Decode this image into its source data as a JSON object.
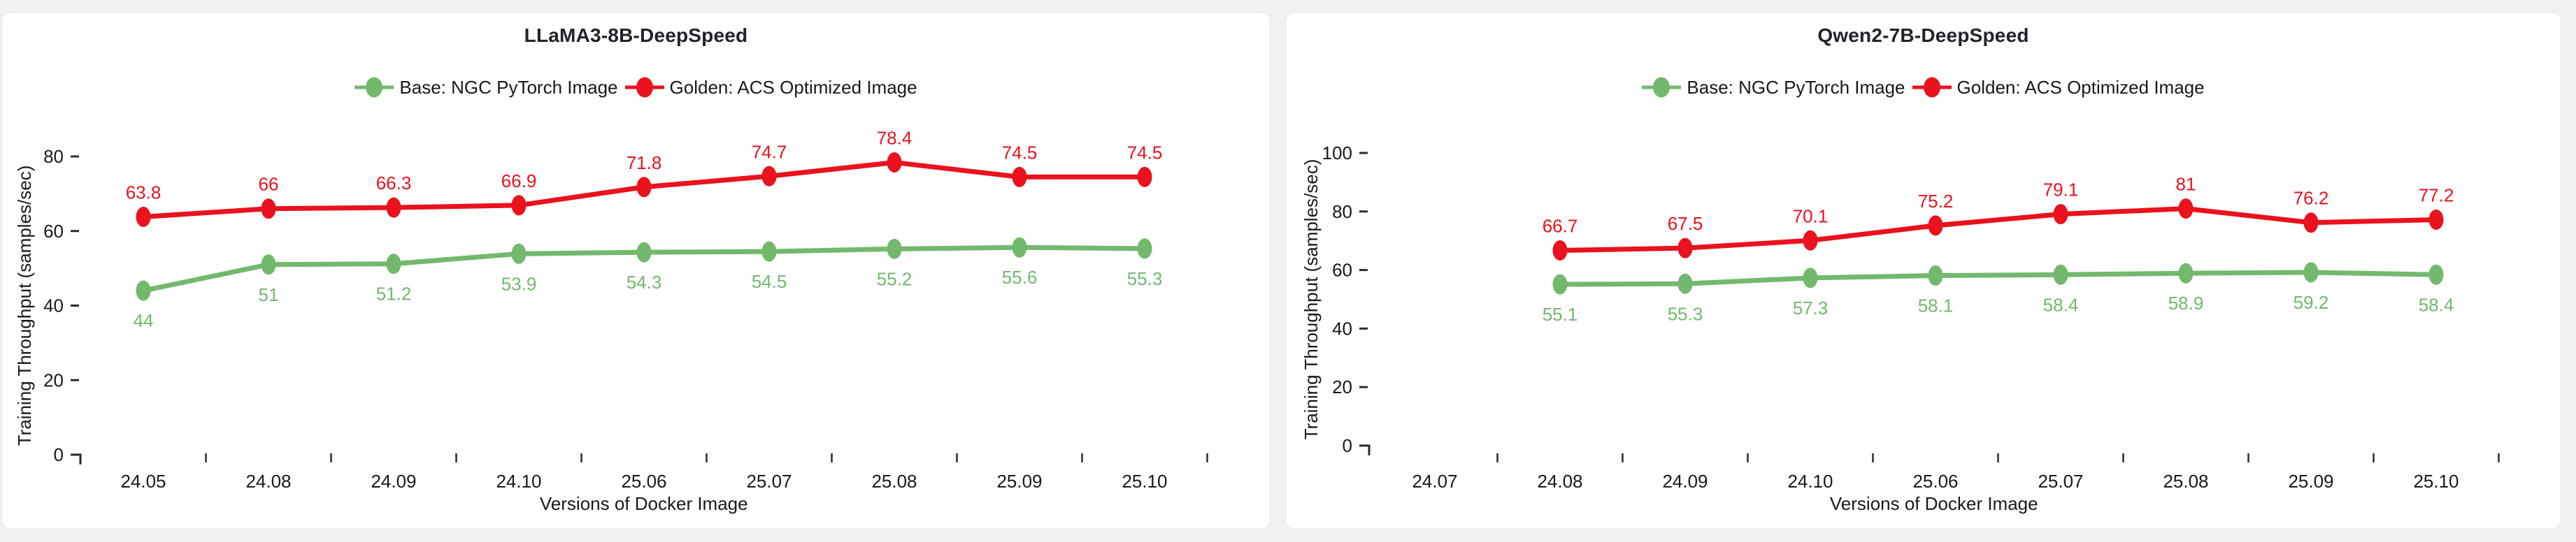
{
  "page": {
    "background_color": "#f1f1f1",
    "panel_background_color": "#ffffff",
    "series_green_color": "#72b96d",
    "series_red_color": "#e9121d"
  },
  "chart_data": [
    {
      "type": "line",
      "title": "LLaMA3-8B-DeepSpeed",
      "xlabel": "Versions of Docker Image",
      "ylabel": "Training Throughput (samples/sec)",
      "categories": [
        "24.05",
        "24.08",
        "24.09",
        "24.10",
        "25.06",
        "25.07",
        "25.08",
        "25.09",
        "25.10"
      ],
      "ylim": [
        0,
        80
      ],
      "yticks": [
        0,
        20,
        40,
        60,
        80
      ],
      "grid": false,
      "legend_position": "top",
      "series": [
        {
          "name": "Base: NGC PyTorch Image",
          "color": "#72b96d",
          "label_position": "below",
          "values": [
            44,
            51,
            51.2,
            53.9,
            54.3,
            54.5,
            55.2,
            55.6,
            55.3
          ]
        },
        {
          "name": "Golden: ACS Optimized Image",
          "color": "#e9121d",
          "label_position": "above",
          "values": [
            63.8,
            66,
            66.3,
            66.9,
            71.8,
            74.7,
            78.4,
            74.5,
            74.5
          ]
        }
      ]
    },
    {
      "type": "line",
      "title": "Qwen2-7B-DeepSpeed",
      "xlabel": "Versions of Docker Image",
      "ylabel": "Training Throughput (samples/sec)",
      "categories": [
        "24.07",
        "24.08",
        "24.09",
        "24.10",
        "25.06",
        "25.07",
        "25.08",
        "25.09",
        "25.10"
      ],
      "ylim": [
        0,
        100
      ],
      "yticks": [
        0,
        20,
        40,
        60,
        80,
        100
      ],
      "grid": false,
      "legend_position": "top",
      "series": [
        {
          "name": "Base: NGC PyTorch Image",
          "color": "#72b96d",
          "label_position": "below",
          "values": [
            null,
            55.1,
            55.3,
            57.3,
            58.1,
            58.4,
            58.9,
            59.2,
            58.4
          ]
        },
        {
          "name": "Golden: ACS Optimized Image",
          "color": "#e9121d",
          "label_position": "above",
          "values": [
            null,
            66.7,
            67.5,
            70.1,
            75.2,
            79.1,
            81,
            76.2,
            77.2
          ]
        }
      ]
    }
  ]
}
